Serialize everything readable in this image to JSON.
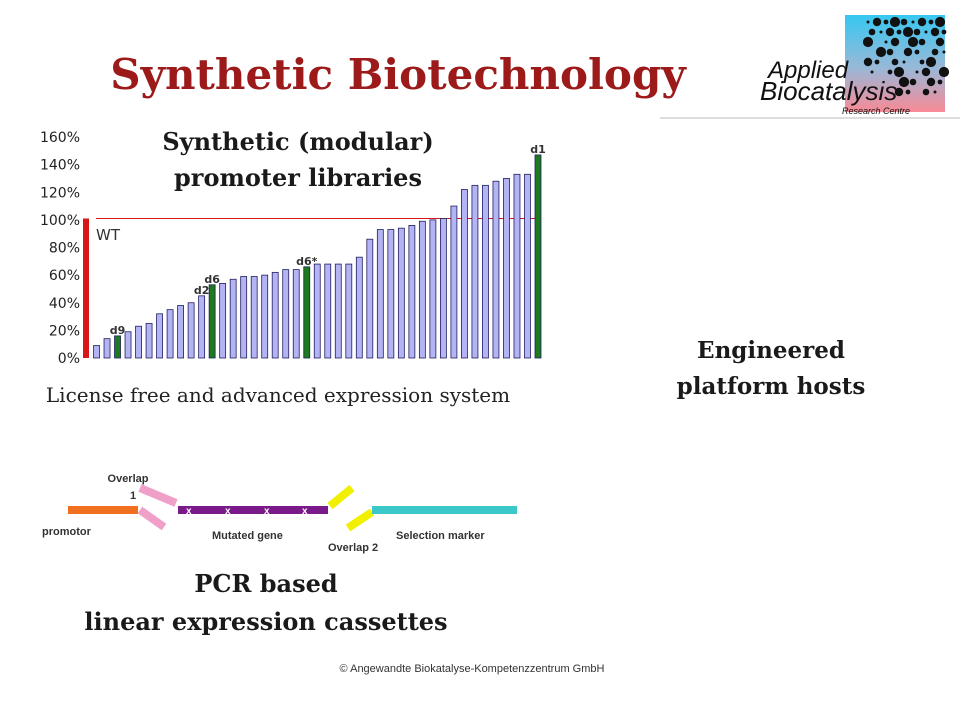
{
  "header": {
    "title": "Synthetic Biotechnology",
    "logo": [
      "Applied",
      "Biocatalysis",
      "Research Centre"
    ]
  },
  "chart_data": {
    "type": "bar",
    "title": [
      "Synthetic (modular)",
      "promoter libraries"
    ],
    "caption": "License free and advanced expression system",
    "categories": [
      "WT",
      null,
      null,
      "d9",
      null,
      null,
      null,
      null,
      null,
      null,
      null,
      "d2",
      "d6",
      null,
      null,
      null,
      null,
      null,
      null,
      null,
      null,
      "d6*",
      null,
      null,
      null,
      null,
      null,
      null,
      null,
      null,
      null,
      null,
      null,
      null,
      null,
      null,
      null,
      null,
      null,
      null,
      null,
      null,
      null,
      "d1"
    ],
    "values": [
      101,
      9,
      14,
      16,
      19,
      23,
      25,
      32,
      35,
      38,
      40,
      45,
      53,
      54,
      57,
      59,
      59,
      60,
      62,
      64,
      64,
      66,
      68,
      68,
      68,
      68,
      73,
      86,
      93,
      93,
      94,
      96,
      99,
      100,
      101,
      110,
      122,
      125,
      125,
      128,
      130,
      133,
      133,
      147
    ],
    "colors": [
      "#d81818",
      "#b4b4f4",
      "#b4b4f4",
      "#1e7a1e",
      "#b4b4f4",
      "#b4b4f4",
      "#b4b4f4",
      "#b4b4f4",
      "#b4b4f4",
      "#b4b4f4",
      "#b4b4f4",
      "#b4b4f4",
      "#1e7a1e",
      "#b4b4f4",
      "#b4b4f4",
      "#b4b4f4",
      "#b4b4f4",
      "#b4b4f4",
      "#b4b4f4",
      "#b4b4f4",
      "#b4b4f4",
      "#1e7a1e",
      "#b4b4f4",
      "#b4b4f4",
      "#b4b4f4",
      "#b4b4f4",
      "#b4b4f4",
      "#b4b4f4",
      "#b4b4f4",
      "#b4b4f4",
      "#b4b4f4",
      "#b4b4f4",
      "#b4b4f4",
      "#b4b4f4",
      "#b4b4f4",
      "#b4b4f4",
      "#b4b4f4",
      "#b4b4f4",
      "#b4b4f4",
      "#b4b4f4",
      "#b4b4f4",
      "#b4b4f4",
      "#b4b4f4",
      "#1e7a1e"
    ],
    "reference_color": "#d81818",
    "ylim": [
      0,
      160
    ],
    "yticks": [
      {
        "value": 0,
        "label": "0%"
      },
      {
        "value": 20,
        "label": "20%"
      },
      {
        "value": 40,
        "label": "40%"
      },
      {
        "value": 60,
        "label": "60%"
      },
      {
        "value": 80,
        "label": "80%"
      },
      {
        "value": 100,
        "label": "100%"
      },
      {
        "value": 120,
        "label": "120%"
      },
      {
        "value": 140,
        "label": "140%"
      },
      {
        "value": 160,
        "label": "160%"
      }
    ]
  },
  "hosts": [
    "Engineered",
    "platform hosts"
  ],
  "cassette": {
    "labels": {
      "overlap1": [
        "Overlap",
        "1"
      ],
      "promotor": "promotor",
      "gene": "Mutated gene",
      "overlap2": "Overlap 2",
      "marker": "Selection marker"
    },
    "title": [
      "PCR based",
      "linear expression cassettes"
    ]
  },
  "footer": "© Angewandte Biokatalyse-Kompetenzzentrum GmbH"
}
